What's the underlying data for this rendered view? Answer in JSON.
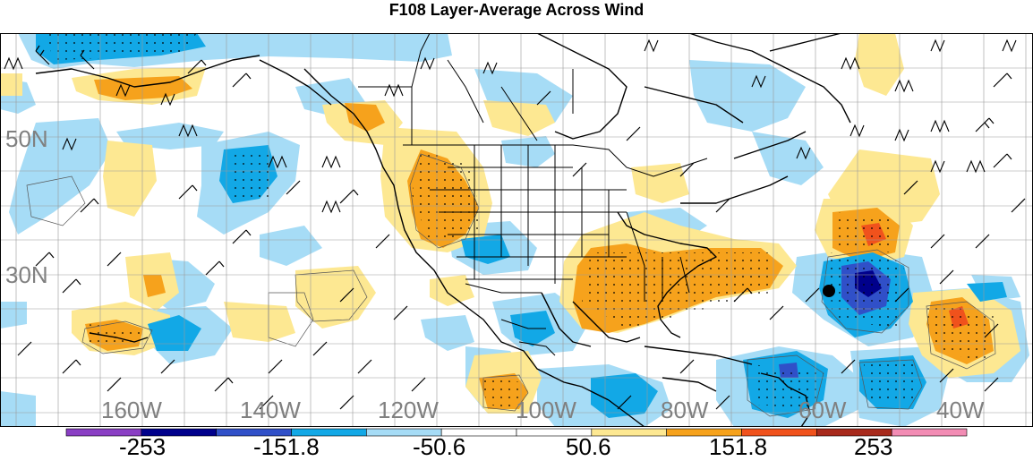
{
  "title": "F108 Layer-Average Across Wind",
  "lat_labels": [
    "50N",
    "30N"
  ],
  "lon_labels": [
    "160W",
    "140W",
    "120W",
    "100W",
    "80W",
    "60W",
    "40W"
  ],
  "colorbar": {
    "labels": [
      "-253",
      "-151.8",
      "-50.6",
      "50.6",
      "151.8",
      "253"
    ],
    "colors": [
      "#8a3fc4",
      "#00008b",
      "#3050c8",
      "#12a8e6",
      "#a6dcf6",
      "#ffffff",
      "#ffffff",
      "#fde892",
      "#f6a21c",
      "#f0521c",
      "#a82a1c",
      "#f28cb4"
    ]
  },
  "colors": {
    "strong_negative": "#00008b",
    "negative_medium": "#3050c8",
    "negative": "#12a8e6",
    "weak_negative": "#a6dcf6",
    "weak_positive": "#fde892",
    "positive": "#f6a21c",
    "strong_positive": "#f0521c"
  }
}
